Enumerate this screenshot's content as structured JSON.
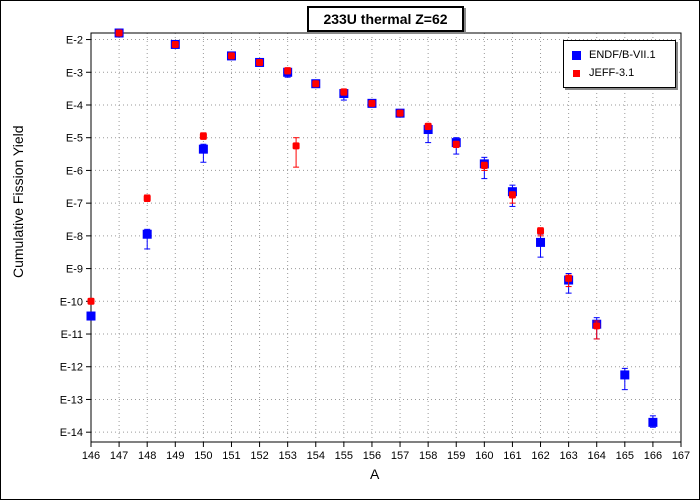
{
  "chart_data": {
    "type": "scatter",
    "title": "233U thermal Z=62",
    "xlabel": "A",
    "ylabel": "Cumulative Fission Yield",
    "x_ticks": [
      "146",
      "147",
      "148",
      "149",
      "150",
      "151",
      "152",
      "153",
      "154",
      "155",
      "156",
      "157",
      "158",
      "159",
      "160",
      "161",
      "162",
      "163",
      "164",
      "165",
      "166",
      "167"
    ],
    "y_ticks": [
      "E-2",
      "E-3",
      "E-4",
      "E-5",
      "E-6",
      "E-7",
      "E-8",
      "E-9",
      "E-10",
      "E-11",
      "E-12",
      "E-13",
      "E-14"
    ],
    "xlim": [
      146,
      167
    ],
    "ylog_exponent_range": [
      -1.8,
      -14.3
    ],
    "grid": true,
    "legend_position": "top-right",
    "series": [
      {
        "name": "ENDF/B-VII.1",
        "color": "#0000ff",
        "marker": "square",
        "points": [
          {
            "x": 146,
            "y_exp": -10.45,
            "err_lo": 0.0,
            "err_hi": 0.0
          },
          {
            "x": 147,
            "y_exp": -1.8,
            "err_lo": 0.05,
            "err_hi": 0.05
          },
          {
            "x": 148,
            "y_exp": -7.95,
            "err_lo": 0.45,
            "err_hi": 0.15
          },
          {
            "x": 149,
            "y_exp": -2.15,
            "err_lo": 0.05,
            "err_hi": 0.05
          },
          {
            "x": 150,
            "y_exp": -5.35,
            "err_lo": 0.4,
            "err_hi": 0.15
          },
          {
            "x": 151,
            "y_exp": -2.5,
            "err_lo": 0.05,
            "err_hi": 0.05
          },
          {
            "x": 152,
            "y_exp": -2.7,
            "err_lo": 0.05,
            "err_hi": 0.05
          },
          {
            "x": 153,
            "y_exp": -3.0,
            "err_lo": 0.15,
            "err_hi": 0.1
          },
          {
            "x": 154,
            "y_exp": -3.35,
            "err_lo": 0.05,
            "err_hi": 0.05
          },
          {
            "x": 155,
            "y_exp": -3.65,
            "err_lo": 0.2,
            "err_hi": 0.1
          },
          {
            "x": 156,
            "y_exp": -3.95,
            "err_lo": 0.1,
            "err_hi": 0.05
          },
          {
            "x": 157,
            "y_exp": -4.25,
            "err_lo": 0.1,
            "err_hi": 0.05
          },
          {
            "x": 158,
            "y_exp": -4.75,
            "err_lo": 0.4,
            "err_hi": 0.15
          },
          {
            "x": 159,
            "y_exp": -5.15,
            "err_lo": 0.35,
            "err_hi": 0.15
          },
          {
            "x": 160,
            "y_exp": -5.8,
            "err_lo": 0.45,
            "err_hi": 0.2
          },
          {
            "x": 161,
            "y_exp": -6.65,
            "err_lo": 0.45,
            "err_hi": 0.2
          },
          {
            "x": 162,
            "y_exp": -8.2,
            "err_lo": 0.45,
            "err_hi": 0.25
          },
          {
            "x": 163,
            "y_exp": -9.35,
            "err_lo": 0.4,
            "err_hi": 0.2
          },
          {
            "x": 164,
            "y_exp": -10.7,
            "err_lo": 0.45,
            "err_hi": 0.2
          },
          {
            "x": 165,
            "y_exp": -12.25,
            "err_lo": 0.45,
            "err_hi": 0.2
          },
          {
            "x": 166,
            "y_exp": -13.7,
            "err_lo": 0.15,
            "err_hi": 0.2
          }
        ]
      },
      {
        "name": "JEFF-3.1",
        "color": "#ff0000",
        "marker": "square",
        "points": [
          {
            "x": 146,
            "y_exp": -10.0,
            "err_lo": 0.05,
            "err_hi": 0.05
          },
          {
            "x": 147,
            "y_exp": -1.8,
            "err_lo": 0.05,
            "err_hi": 0.05
          },
          {
            "x": 148,
            "y_exp": -6.85,
            "err_lo": 0.1,
            "err_hi": 0.1
          },
          {
            "x": 149,
            "y_exp": -2.15,
            "err_lo": 0.05,
            "err_hi": 0.05
          },
          {
            "x": 150,
            "y_exp": -4.95,
            "err_lo": 0.1,
            "err_hi": 0.1
          },
          {
            "x": 151,
            "y_exp": -2.5,
            "err_lo": 0.05,
            "err_hi": 0.05
          },
          {
            "x": 152,
            "y_exp": -2.7,
            "err_lo": 0.05,
            "err_hi": 0.05
          },
          {
            "x": 153,
            "y_exp": -2.95,
            "err_lo": 0.1,
            "err_hi": 0.05
          },
          {
            "x": 153.3,
            "y_exp": -5.25,
            "err_lo": 0.65,
            "err_hi": 0.25
          },
          {
            "x": 154,
            "y_exp": -3.35,
            "err_lo": 0.05,
            "err_hi": 0.05
          },
          {
            "x": 155,
            "y_exp": -3.6,
            "err_lo": 0.1,
            "err_hi": 0.05
          },
          {
            "x": 156,
            "y_exp": -3.95,
            "err_lo": 0.05,
            "err_hi": 0.05
          },
          {
            "x": 157,
            "y_exp": -4.25,
            "err_lo": 0.05,
            "err_hi": 0.05
          },
          {
            "x": 158,
            "y_exp": -4.65,
            "err_lo": 0.1,
            "err_hi": 0.05
          },
          {
            "x": 159,
            "y_exp": -5.2,
            "err_lo": 0.1,
            "err_hi": 0.05
          },
          {
            "x": 160,
            "y_exp": -5.85,
            "err_lo": 0.15,
            "err_hi": 0.1
          },
          {
            "x": 161,
            "y_exp": -6.75,
            "err_lo": 0.25,
            "err_hi": 0.1
          },
          {
            "x": 162,
            "y_exp": -7.85,
            "err_lo": 0.15,
            "err_hi": 0.1
          },
          {
            "x": 163,
            "y_exp": -9.3,
            "err_lo": 0.25,
            "err_hi": 0.1
          },
          {
            "x": 164,
            "y_exp": -10.75,
            "err_lo": 0.4,
            "err_hi": 0.15
          }
        ]
      }
    ]
  }
}
